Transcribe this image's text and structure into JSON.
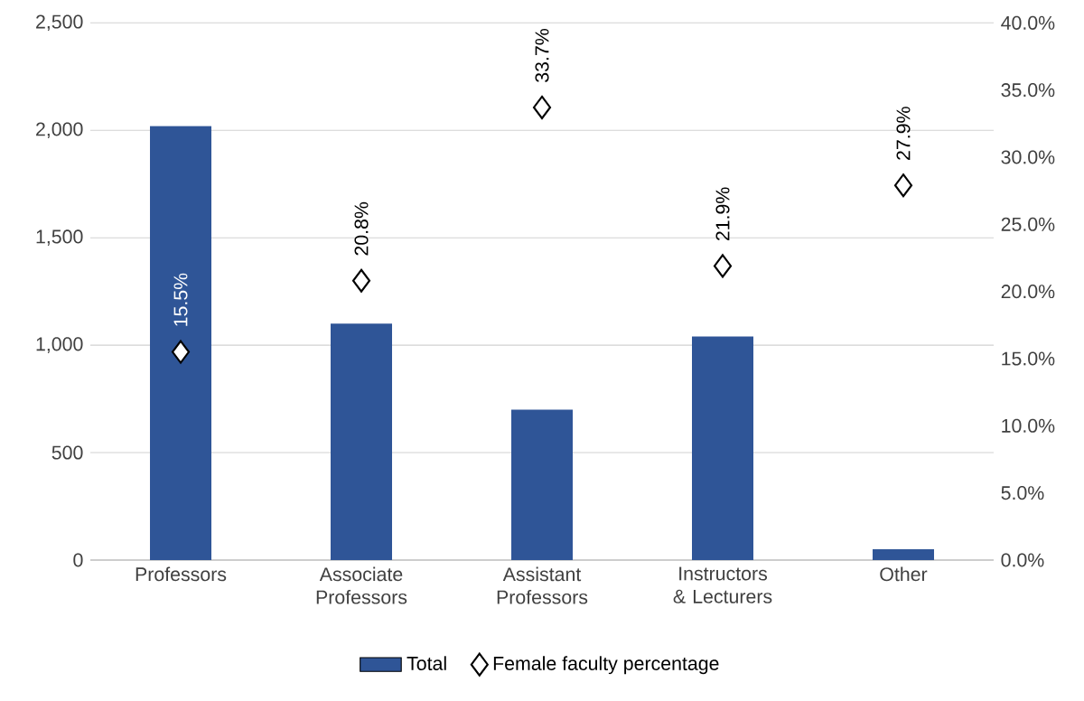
{
  "chart_data": {
    "type": "bar",
    "categories": [
      "Professors",
      "Associate Professors",
      "Assistant Professors",
      "Instructors & Lecturers",
      "Other"
    ],
    "series": [
      {
        "name": "Total",
        "color": "#2f5597",
        "values": [
          2020,
          1100,
          700,
          1040,
          50
        ]
      },
      {
        "name": "Female faculty percentage",
        "type": "scatter",
        "axis": "y2",
        "color": "#000000",
        "marker": "diamond",
        "values": [
          15.5,
          20.8,
          33.7,
          21.9,
          27.9
        ],
        "value_labels": [
          "15.5%",
          "20.8%",
          "33.7%",
          "21.9%",
          "27.9%"
        ]
      }
    ],
    "ylim": [
      0,
      2500
    ],
    "yticks": [
      0,
      {
        "value": 500,
        "label": "500"
      },
      {
        "value": 1000,
        "label": "1,000"
      },
      {
        "value": 1500,
        "label": "1,500"
      },
      {
        "value": 2000,
        "label": "2,000"
      },
      {
        "value": 2500,
        "label": "2,500"
      }
    ],
    "y2lim": [
      0,
      40
    ],
    "y2ticks": [
      {
        "value": 0,
        "label": "0.0%"
      },
      {
        "value": 5,
        "label": "5.0%"
      },
      {
        "value": 10,
        "label": "10.0%"
      },
      {
        "value": 15,
        "label": "15.0%"
      },
      {
        "value": 20,
        "label": "20.0%"
      },
      {
        "value": 25,
        "label": "25.0%"
      },
      {
        "value": 30,
        "label": "30.0%"
      },
      {
        "value": 35,
        "label": "35.0%"
      },
      {
        "value": 40,
        "label": "40.0%"
      }
    ],
    "grid": "y",
    "legend": "bottom"
  }
}
